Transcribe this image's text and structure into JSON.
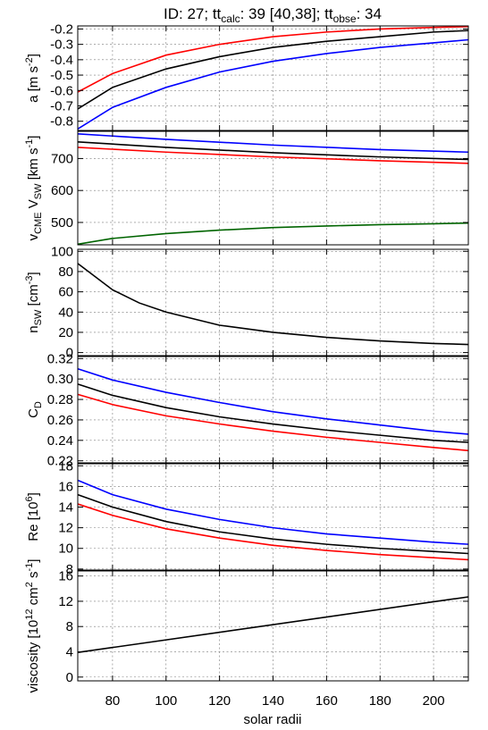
{
  "title": {
    "prefix": "ID: 27; tt",
    "sub1": "calc",
    "mid": ": 39 [40,38]; tt",
    "sub2": "obse",
    "suffix": ": 34"
  },
  "xlabel": "solar radii",
  "xlim": [
    67,
    213
  ],
  "xticks": [
    80,
    100,
    120,
    140,
    160,
    180,
    200
  ],
  "colors": {
    "blue": "#0000ff",
    "black": "#000000",
    "red": "#ff0000",
    "green": "#006400"
  },
  "chart_data": [
    {
      "type": "line",
      "id": "acceleration",
      "ylabel_html": "a [m s<tspan dy='-6' font-size='11'>-2</tspan><tspan dy='6'>]</tspan>",
      "ylim": [
        -0.86,
        -0.18
      ],
      "yticks": [
        -0.8,
        -0.7,
        -0.6,
        -0.5,
        -0.4,
        -0.3,
        -0.2
      ],
      "ytick_labels": [
        "-0.8",
        "-0.7",
        "-0.6",
        "-0.5",
        "-0.4",
        "-0.3",
        "-0.2"
      ],
      "series": [
        {
          "color": "red",
          "x": [
            67,
            80,
            100,
            120,
            140,
            160,
            180,
            200,
            213
          ],
          "y": [
            -0.61,
            -0.49,
            -0.37,
            -0.3,
            -0.25,
            -0.22,
            -0.2,
            -0.19,
            -0.185
          ]
        },
        {
          "color": "black",
          "x": [
            67,
            80,
            100,
            120,
            140,
            160,
            180,
            200,
            213
          ],
          "y": [
            -0.72,
            -0.58,
            -0.46,
            -0.38,
            -0.32,
            -0.28,
            -0.25,
            -0.22,
            -0.21
          ]
        },
        {
          "color": "blue",
          "x": [
            67,
            80,
            100,
            120,
            140,
            160,
            180,
            200,
            213
          ],
          "y": [
            -0.85,
            -0.71,
            -0.58,
            -0.48,
            -0.41,
            -0.36,
            -0.32,
            -0.29,
            -0.27
          ]
        }
      ]
    },
    {
      "type": "line",
      "id": "speeds",
      "ylabel_html": "v<tspan dy='4' font-size='11'>CME</tspan><tspan dy='-4'> V</tspan><tspan dy='4' font-size='11'>SW</tspan><tspan dy='-4'> [km s</tspan><tspan dy='-6' font-size='11'>-1</tspan><tspan dy='6'>]</tspan>",
      "ylim": [
        430,
        785
      ],
      "yticks": [
        500,
        600,
        700
      ],
      "ytick_labels": [
        "500",
        "600",
        "700"
      ],
      "series": [
        {
          "color": "blue",
          "x": [
            67,
            100,
            140,
            180,
            213
          ],
          "y": [
            777,
            760,
            742,
            728,
            720
          ]
        },
        {
          "color": "black",
          "x": [
            67,
            100,
            140,
            180,
            213
          ],
          "y": [
            752,
            735,
            718,
            705,
            697
          ]
        },
        {
          "color": "red",
          "x": [
            67,
            100,
            140,
            180,
            213
          ],
          "y": [
            735,
            720,
            705,
            693,
            685
          ]
        },
        {
          "color": "green",
          "x": [
            67,
            80,
            100,
            120,
            140,
            160,
            180,
            200,
            213
          ],
          "y": [
            432,
            450,
            465,
            476,
            484,
            489,
            493,
            496,
            498
          ]
        }
      ]
    },
    {
      "type": "line",
      "id": "density",
      "ylabel_html": "n<tspan dy='4' font-size='11'>SW</tspan><tspan dy='-4'> [cm</tspan><tspan dy='-6' font-size='11'>-3</tspan><tspan dy='6'>]</tspan>",
      "ylim": [
        -3,
        102
      ],
      "yticks": [
        0,
        20,
        40,
        60,
        80,
        100
      ],
      "ytick_labels": [
        "0",
        "20",
        "40",
        "60",
        "80",
        "100"
      ],
      "series": [
        {
          "color": "black",
          "x": [
            67,
            80,
            90,
            100,
            120,
            140,
            160,
            180,
            200,
            213
          ],
          "y": [
            88,
            62,
            49,
            40,
            27,
            20,
            15,
            11.5,
            9,
            8
          ]
        }
      ]
    },
    {
      "type": "line",
      "id": "drag",
      "ylabel_html": "C<tspan dy='4' font-size='11'>D</tspan>",
      "ylim": [
        0.218,
        0.322
      ],
      "yticks": [
        0.22,
        0.24,
        0.26,
        0.28,
        0.3,
        0.32
      ],
      "ytick_labels": [
        "0.22",
        "0.24",
        "0.26",
        "0.28",
        "0.30",
        "0.32"
      ],
      "series": [
        {
          "color": "blue",
          "x": [
            67,
            80,
            100,
            120,
            140,
            160,
            180,
            200,
            213
          ],
          "y": [
            0.31,
            0.299,
            0.287,
            0.277,
            0.268,
            0.261,
            0.255,
            0.249,
            0.246
          ]
        },
        {
          "color": "black",
          "x": [
            67,
            80,
            100,
            120,
            140,
            160,
            180,
            200,
            213
          ],
          "y": [
            0.295,
            0.284,
            0.272,
            0.263,
            0.256,
            0.25,
            0.245,
            0.24,
            0.238
          ]
        },
        {
          "color": "red",
          "x": [
            67,
            80,
            100,
            120,
            140,
            160,
            180,
            200,
            213
          ],
          "y": [
            0.285,
            0.275,
            0.264,
            0.256,
            0.249,
            0.243,
            0.238,
            0.233,
            0.23
          ]
        }
      ]
    },
    {
      "type": "line",
      "id": "reynolds",
      "ylabel_html": "Re [10<tspan dy='-6' font-size='11'>6</tspan><tspan dy='6'>]</tspan>",
      "ylim": [
        7.9,
        18.2
      ],
      "yticks": [
        8,
        10,
        12,
        14,
        16,
        18
      ],
      "ytick_labels": [
        "8",
        "10",
        "12",
        "14",
        "16",
        "18"
      ],
      "series": [
        {
          "color": "blue",
          "x": [
            67,
            80,
            100,
            120,
            140,
            160,
            180,
            200,
            213
          ],
          "y": [
            16.6,
            15.2,
            13.8,
            12.8,
            12.0,
            11.4,
            11.0,
            10.6,
            10.4
          ]
        },
        {
          "color": "black",
          "x": [
            67,
            80,
            100,
            120,
            140,
            160,
            180,
            200,
            213
          ],
          "y": [
            15.2,
            14.0,
            12.6,
            11.6,
            10.9,
            10.4,
            10.0,
            9.7,
            9.5
          ]
        },
        {
          "color": "red",
          "x": [
            67,
            80,
            100,
            120,
            140,
            160,
            180,
            200,
            213
          ],
          "y": [
            14.3,
            13.2,
            11.9,
            11.0,
            10.3,
            9.8,
            9.4,
            9.1,
            8.9
          ]
        }
      ]
    },
    {
      "type": "line",
      "id": "viscosity",
      "ylabel_html": "viscosity  [10<tspan dy='-6' font-size='11'>12</tspan><tspan dy='6'> cm</tspan><tspan dy='-6' font-size='11'>2</tspan><tspan dy='6'> s</tspan><tspan dy='-6' font-size='11'>-1</tspan><tspan dy='6'>]</tspan>",
      "ylim": [
        -0.6,
        16.8
      ],
      "yticks": [
        0,
        4,
        8,
        12,
        16
      ],
      "ytick_labels": [
        "0",
        "4",
        "8",
        "12",
        "16"
      ],
      "series": [
        {
          "color": "black",
          "x": [
            67,
            213
          ],
          "y": [
            3.9,
            12.7
          ]
        }
      ]
    }
  ]
}
